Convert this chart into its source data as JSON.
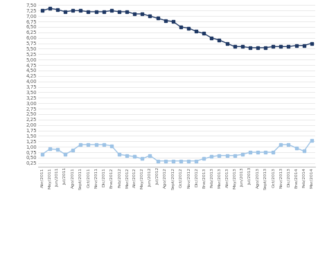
{
  "labels": [
    "Abr/2011",
    "May/2011",
    "Jun/2011",
    "Jul/2011",
    "Ago/2011",
    "Sept/2011",
    "Oct/2011",
    "Nov/2011",
    "Dic/2011",
    "Ene/2012",
    "Feb/2012",
    "Mar/2012",
    "Abr/2012",
    "May/2012",
    "Jun/2012",
    "Jul/2012",
    "Ago/2012",
    "Sept/2012",
    "Oct/2012",
    "Nov/2012",
    "Dic/2012",
    "Ene/2013",
    "Feb/2013",
    "Mar/2013",
    "Abr/2013",
    "May/2013",
    "Jun/2013",
    "Jul/2013",
    "Ago/2013",
    "Sept/2013",
    "Oct/2013",
    "Nov/2013",
    "Dic/2013",
    "Ene/2014",
    "Feb/2014",
    "Mar/2014"
  ],
  "industrias": [
    7.25,
    7.35,
    7.3,
    7.2,
    7.25,
    7.25,
    7.2,
    7.2,
    7.2,
    7.25,
    7.2,
    7.2,
    7.1,
    7.1,
    7.0,
    6.9,
    6.8,
    6.75,
    6.5,
    6.45,
    6.3,
    6.2,
    6.0,
    5.9,
    5.75,
    5.6,
    5.6,
    5.55,
    5.55,
    5.55,
    5.6,
    5.6,
    5.6,
    5.65,
    5.65,
    5.75
  ],
  "gerdau": [
    0.65,
    0.9,
    0.88,
    0.65,
    0.85,
    1.1,
    1.1,
    1.1,
    1.1,
    1.05,
    0.65,
    0.6,
    0.55,
    0.45,
    0.6,
    0.35,
    0.35,
    0.35,
    0.35,
    0.35,
    0.35,
    0.45,
    0.55,
    0.6,
    0.6,
    0.6,
    0.65,
    0.75,
    0.75,
    0.75,
    0.75,
    1.1,
    1.1,
    0.95,
    0.8,
    1.3
  ],
  "industrias_color": "#1F3864",
  "gerdau_color": "#9DC3E6",
  "background_color": "#FFFFFF",
  "yticks": [
    0.25,
    0.5,
    0.75,
    1.0,
    1.25,
    1.5,
    1.75,
    2.0,
    2.25,
    2.5,
    2.75,
    3.0,
    3.25,
    3.5,
    3.75,
    4.0,
    4.25,
    4.5,
    4.75,
    5.0,
    5.25,
    5.5,
    5.75,
    6.0,
    6.25,
    6.5,
    6.75,
    7.0,
    7.25,
    7.5
  ],
  "ylim_min": 0.1,
  "ylim_max": 7.62,
  "grid_color": "#E0E0E0",
  "spine_color": "#AAAAAA"
}
